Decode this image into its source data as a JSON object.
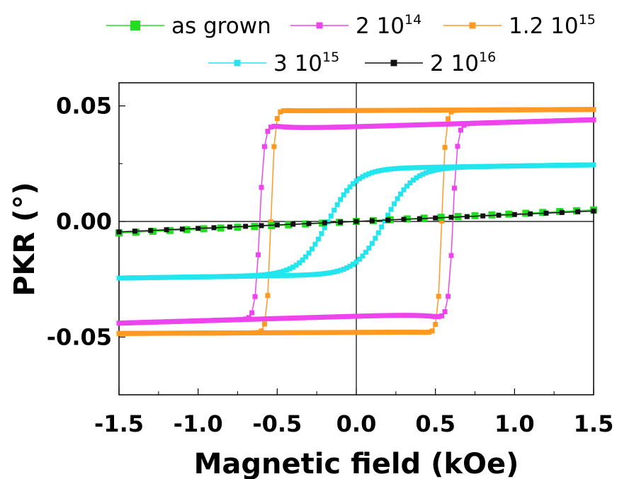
{
  "chart_data": {
    "type": "line",
    "xlabel": "Magnetic field (kOe)",
    "ylabel": "PKR (°)",
    "xlim": [
      -1.5,
      1.5
    ],
    "ylim": [
      -0.075,
      0.06
    ],
    "x_ticks": [
      -1.5,
      -1.0,
      -0.5,
      0.0,
      0.5,
      1.0,
      1.5
    ],
    "x_tick_labels": [
      "-1.5",
      "-1.0",
      "-0.5",
      "0.0",
      "0.5",
      "1.0",
      "1.5"
    ],
    "y_ticks": [
      -0.05,
      0.0,
      0.05
    ],
    "y_tick_labels": [
      "-0.05",
      "0.00",
      "0.05"
    ],
    "grid": false,
    "legend_position": "top",
    "series": [
      {
        "name": "as grown",
        "exponent": "",
        "color": "#22dd22",
        "marker": "square-large",
        "kind": "linear",
        "points": [
          [
            -1.5,
            -0.005
          ],
          [
            -1.0,
            -0.0033
          ],
          [
            -0.5,
            -0.0017
          ],
          [
            0.0,
            0.0
          ],
          [
            0.5,
            0.0017
          ],
          [
            1.0,
            0.0033
          ],
          [
            1.5,
            0.005
          ]
        ]
      },
      {
        "name": "2 10",
        "exponent": "14",
        "color": "#ee44ee",
        "marker": "square",
        "kind": "hysteresis",
        "loop": {
          "Ms": 0.041,
          "Hc": 0.61,
          "w": 0.03,
          "slope": 0.002,
          "shoulder_amp": 0.003,
          "shoulder_w": 0.12
        }
      },
      {
        "name": "1.2 10",
        "exponent": "15",
        "color": "#ff9922",
        "marker": "square",
        "kind": "hysteresis",
        "loop": {
          "Ms": 0.048,
          "Hc": 0.54,
          "w": 0.025,
          "slope": 0.0003,
          "shoulder_amp": 0.001,
          "shoulder_w": 0.05
        }
      },
      {
        "name": "3 10",
        "exponent": "15",
        "color": "#22e5ee",
        "marker": "square",
        "kind": "hysteresis",
        "loop": {
          "Ms": 0.023,
          "Hc": 0.18,
          "w": 0.18,
          "slope": 0.001,
          "shoulder_amp": 0.0,
          "shoulder_w": 0.1
        }
      },
      {
        "name": "2 10",
        "exponent": "16",
        "color": "#111111",
        "marker": "square",
        "kind": "linear",
        "points": [
          [
            -1.5,
            -0.0045
          ],
          [
            -1.0,
            -0.003
          ],
          [
            -0.5,
            -0.0015
          ],
          [
            0.0,
            0.0
          ],
          [
            0.5,
            0.0015
          ],
          [
            1.0,
            0.003
          ],
          [
            1.5,
            0.0045
          ]
        ]
      }
    ]
  }
}
